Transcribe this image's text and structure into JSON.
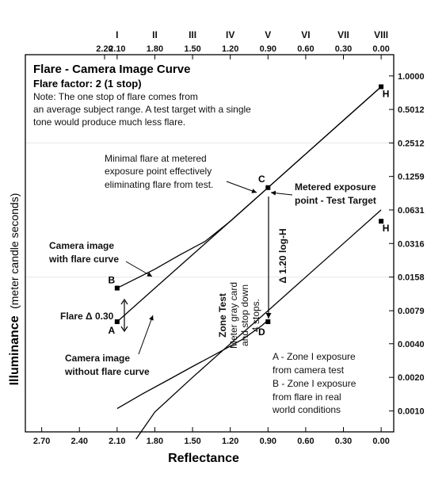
{
  "chart_data": {
    "type": "line",
    "title": "Flare - Camera Image Curve",
    "subtitle": "Flare factor: 2 (1 stop)",
    "note": [
      "Note:  The one stop of flare comes from",
      "an average subject range.  A test target with a single",
      "tone would produce much less flare."
    ],
    "xlabel": "Reflectance",
    "ylabel_main": "Illuminance",
    "ylabel_unit": "(meter candle seconds)",
    "x_axis_reversed": true,
    "xlim": [
      2.83,
      -0.1
    ],
    "ylim_log": [
      0.00065,
      1.55
    ],
    "bottom_ticks": [
      "2.70",
      "2.40",
      "2.10",
      "1.80",
      "1.50",
      "1.20",
      "0.90",
      "0.60",
      "0.30",
      "0.00"
    ],
    "bottom_tick_values": [
      2.7,
      2.4,
      2.1,
      1.8,
      1.5,
      1.2,
      0.9,
      0.6,
      0.3,
      0.0
    ],
    "top_ticks": [
      "2.20",
      "2.10",
      "1.80",
      "1.50",
      "1.20",
      "0.90",
      "0.60",
      "0.30",
      "0.00"
    ],
    "top_tick_values": [
      2.2,
      2.1,
      1.8,
      1.5,
      1.2,
      0.9,
      0.6,
      0.3,
      0.0
    ],
    "zones": [
      "I",
      "II",
      "III",
      "IV",
      "V",
      "VI",
      "VII",
      "VIII"
    ],
    "zone_values": [
      2.1,
      1.8,
      1.5,
      1.2,
      0.9,
      0.6,
      0.3,
      0.0
    ],
    "right_ticks": [
      "1.0000",
      "0.5012",
      "0.2512",
      "0.1259",
      "0.0631",
      "0.0316",
      "0.0158",
      "0.0079",
      "0.0040",
      "0.0020",
      "0.0010"
    ],
    "right_tick_values": [
      1.0,
      0.5012,
      0.2512,
      0.1259,
      0.0631,
      0.0316,
      0.0158,
      0.0079,
      0.004,
      0.002,
      0.001
    ],
    "grid": true,
    "series": [
      {
        "name": "Camera image without flare curve",
        "points": [
          [
            1.95,
            0.00056
          ],
          [
            1.8,
            0.00098
          ],
          [
            1.5,
            0.002
          ],
          [
            1.2,
            0.004
          ],
          [
            0.9,
            0.0079
          ],
          [
            0.6,
            0.0158
          ],
          [
            0.3,
            0.0316
          ],
          [
            0.0,
            0.0631
          ]
        ]
      },
      {
        "name": "Camera image with flare curve",
        "points": [
          [
            2.1,
            0.00105
          ],
          [
            1.9,
            0.00142
          ],
          [
            1.7,
            0.00188
          ],
          [
            1.5,
            0.0025
          ],
          [
            1.3,
            0.0033
          ],
          [
            1.1,
            0.0044
          ],
          [
            0.95,
            0.0058
          ],
          [
            0.9,
            0.0065
          ]
        ]
      },
      {
        "name": "Camera image without flare curve (upper)",
        "points": [
          [
            2.1,
            0.0063
          ],
          [
            1.8,
            0.0126
          ],
          [
            1.5,
            0.0251
          ],
          [
            1.2,
            0.0501
          ],
          [
            0.9,
            0.1
          ],
          [
            0.6,
            0.2
          ],
          [
            0.3,
            0.4
          ],
          [
            0.0,
            0.8
          ]
        ]
      },
      {
        "name": "Camera image with flare curve (upper)",
        "points": [
          [
            2.1,
            0.0126
          ],
          [
            1.8,
            0.0186
          ],
          [
            1.6,
            0.025
          ],
          [
            1.4,
            0.033
          ],
          [
            1.2,
            0.05
          ],
          [
            0.9,
            0.1
          ],
          [
            0.6,
            0.2
          ],
          [
            0.3,
            0.4
          ],
          [
            0.0,
            0.8
          ]
        ]
      }
    ],
    "points": [
      {
        "label": "A",
        "x": 2.1,
        "y": 0.0063
      },
      {
        "label": "B",
        "x": 2.1,
        "y": 0.0126
      },
      {
        "label": "C",
        "x": 0.9,
        "y": 0.1
      },
      {
        "label": "D",
        "x": 0.9,
        "y": 0.0063
      },
      {
        "label": "H",
        "x": 0.0,
        "y": 0.8
      },
      {
        "label": "H",
        "x": 0.0,
        "y": 0.05
      }
    ],
    "annotations": {
      "minimal_flare": [
        "Minimal flare at metered",
        "exposure point effectively",
        "eliminating flare from test."
      ],
      "metered_exposure": [
        "Metered exposure",
        "point - Test Target"
      ],
      "with_flare": [
        "Camera image",
        "with flare curve"
      ],
      "without_flare": [
        "Camera image",
        "without flare curve"
      ],
      "flare_delta": "Flare Δ 0.30",
      "zone_test_title": "Zone Test",
      "zone_test_body": [
        "Meter gray card",
        "and stop down",
        "4 stops."
      ],
      "delta_logh": "Δ 1.20 log-H",
      "legend_a": [
        "A - Zone I exposure",
        "from camera test"
      ],
      "legend_b": [
        "B - Zone I exposure",
        "from flare in real",
        "world conditions"
      ]
    }
  }
}
